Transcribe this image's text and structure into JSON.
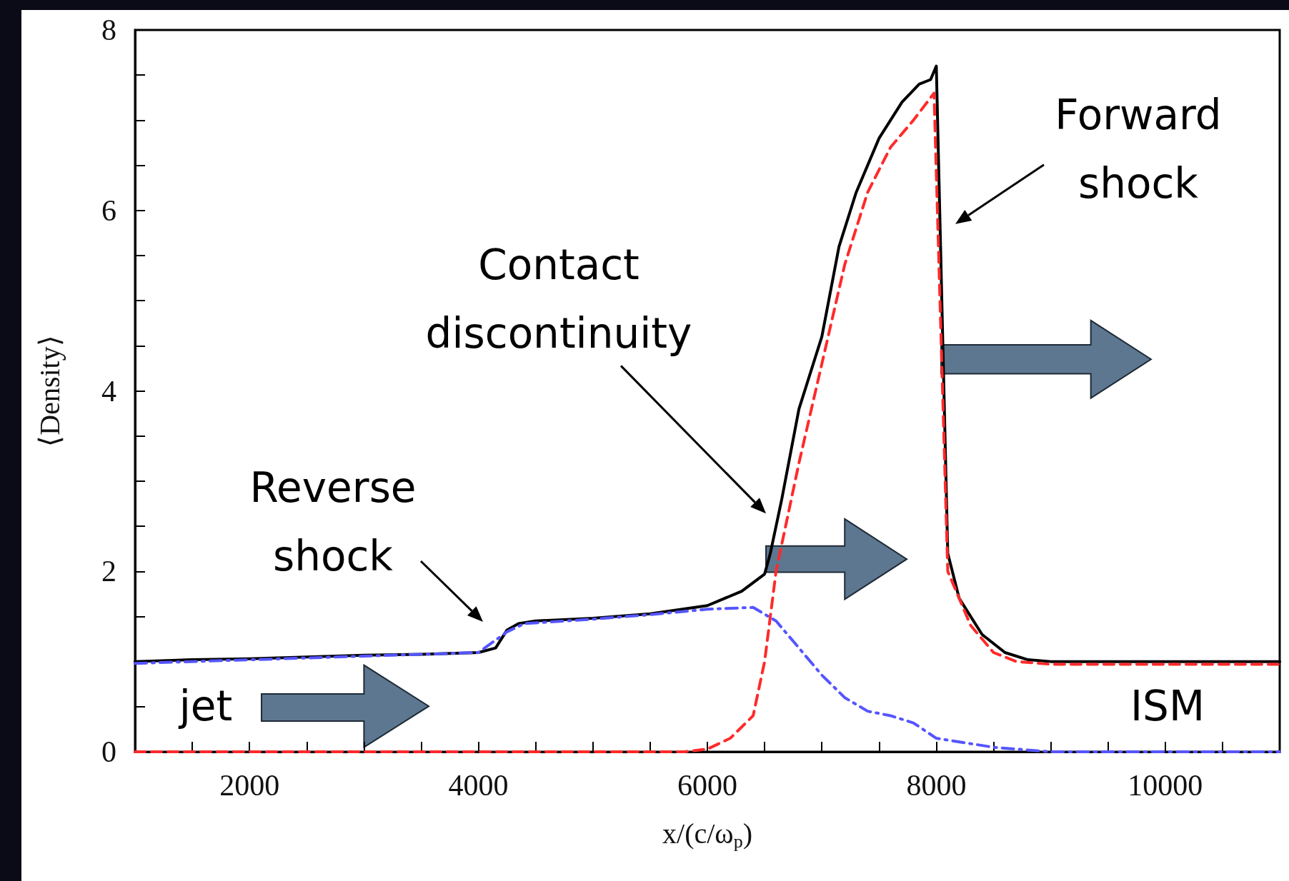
{
  "chart_data": {
    "type": "line",
    "xlabel": "x/(c/ω$_{p}$)",
    "ylabel": "⟨Density⟩",
    "xlim": [
      1000,
      11000
    ],
    "ylim": [
      0,
      8
    ],
    "xticks": [
      {
        "value": 1000,
        "label": null
      },
      {
        "value": 1500,
        "label": null
      },
      2000,
      {
        "value": 2500,
        "label": null
      },
      {
        "value": 3000,
        "label": null
      },
      {
        "value": 3500,
        "label": null
      },
      4000,
      {
        "value": 4500,
        "label": null
      },
      {
        "value": 5000,
        "label": null
      },
      {
        "value": 5500,
        "label": null
      },
      6000,
      {
        "value": 6500,
        "label": null
      },
      {
        "value": 7000,
        "label": null
      },
      {
        "value": 7500,
        "label": null
      },
      8000,
      {
        "value": 8500,
        "label": null
      },
      {
        "value": 9000,
        "label": null
      },
      {
        "value": 9500,
        "label": null
      },
      10000,
      {
        "value": 10500,
        "label": null
      },
      {
        "value": 11000,
        "label": null
      }
    ],
    "yticks": [
      0,
      {
        "value": 0.5,
        "label": null
      },
      {
        "value": 1,
        "label": null
      },
      {
        "value": 1.5,
        "label": null
      },
      2,
      {
        "value": 2.5,
        "label": null
      },
      {
        "value": 3,
        "label": null
      },
      {
        "value": 3.5,
        "label": null
      },
      4,
      {
        "value": 4.5,
        "label": null
      },
      {
        "value": 5,
        "label": null
      },
      {
        "value": 5.5,
        "label": null
      },
      6,
      {
        "value": 6.5,
        "label": null
      },
      {
        "value": 7,
        "label": null
      },
      {
        "value": 7.5,
        "label": null
      },
      8
    ],
    "series": [
      {
        "color": "#000000",
        "line_style": "solid",
        "x": [
          1000,
          1500,
          2000,
          2500,
          3000,
          3500,
          4000,
          4150,
          4250,
          4350,
          4500,
          5000,
          5500,
          6000,
          6300,
          6500,
          6550,
          6650,
          6800,
          7000,
          7150,
          7300,
          7500,
          7700,
          7850,
          7950,
          8000,
          8100,
          8200,
          8400,
          8600,
          8800,
          9000,
          10000,
          11000
        ],
        "values": [
          1.0,
          1.02,
          1.03,
          1.05,
          1.07,
          1.08,
          1.1,
          1.15,
          1.35,
          1.42,
          1.45,
          1.48,
          1.53,
          1.62,
          1.78,
          1.97,
          2.2,
          2.8,
          3.8,
          4.6,
          5.6,
          6.2,
          6.8,
          7.2,
          7.4,
          7.45,
          7.6,
          2.2,
          1.7,
          1.3,
          1.1,
          1.02,
          1.0,
          1.0,
          1.0
        ]
      },
      {
        "color": "#ff2a2a",
        "line_style": "dashed",
        "x": [
          1000,
          3000,
          5000,
          5800,
          6000,
          6200,
          6400,
          6500,
          6600,
          6800,
          7000,
          7200,
          7400,
          7600,
          7800,
          7980,
          8100,
          8300,
          8500,
          8700,
          9000,
          11000
        ],
        "values": [
          0,
          0,
          0,
          0,
          0.03,
          0.15,
          0.4,
          1.0,
          2.0,
          3.2,
          4.3,
          5.4,
          6.2,
          6.7,
          7.0,
          7.3,
          2.0,
          1.4,
          1.1,
          1.0,
          0.97,
          0.97
        ]
      },
      {
        "color": "#5555ff",
        "line_style": "dashdot",
        "x": [
          1000,
          2000,
          3000,
          4000,
          4250,
          4400,
          5000,
          5500,
          6000,
          6400,
          6600,
          6800,
          7000,
          7200,
          7400,
          7600,
          7800,
          8000,
          8500,
          9000,
          11000
        ],
        "values": [
          0.98,
          1.02,
          1.06,
          1.1,
          1.33,
          1.42,
          1.47,
          1.52,
          1.58,
          1.6,
          1.45,
          1.15,
          0.85,
          0.6,
          0.45,
          0.4,
          0.32,
          0.15,
          0.05,
          0,
          0
        ]
      }
    ],
    "annotations": [
      "Contact discontinuity",
      "Reverse shock",
      "Forward shock",
      "jet",
      "ISM"
    ]
  }
}
